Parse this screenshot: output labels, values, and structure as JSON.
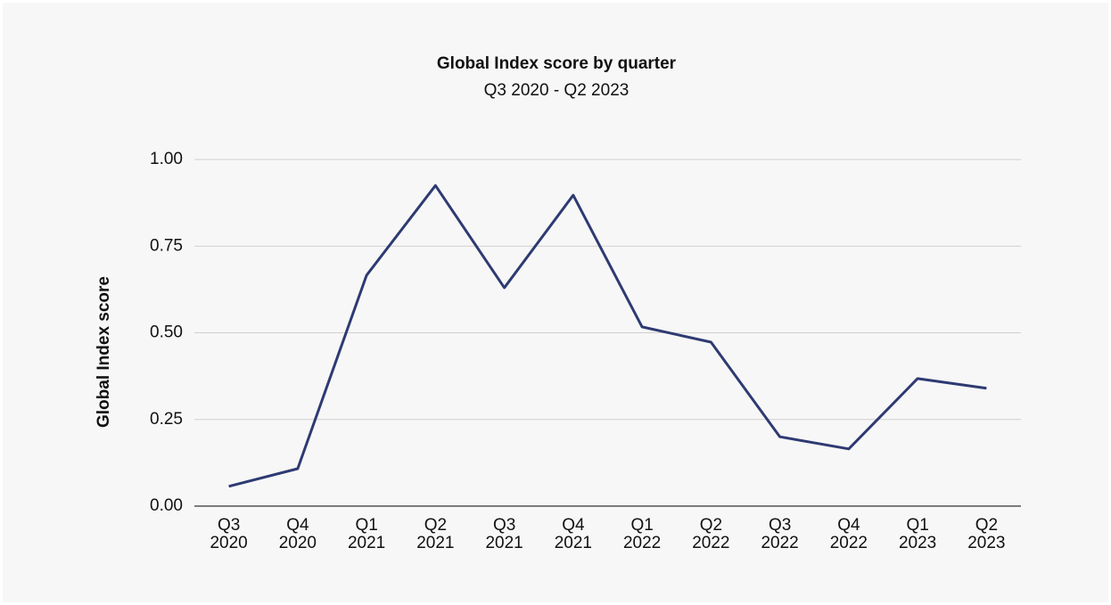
{
  "chart_data": {
    "type": "line",
    "title": "Global Index score by quarter",
    "subtitle": "Q3 2020 - Q2 2023",
    "y_label": "Global Index score",
    "categories": [
      "Q3 2020",
      "Q4 2020",
      "Q1 2021",
      "Q2 2021",
      "Q3 2021",
      "Q4 2021",
      "Q1 2022",
      "Q2 2022",
      "Q3 2022",
      "Q4 2022",
      "Q1 2023",
      "Q2 2023"
    ],
    "values": [
      0.057,
      0.108,
      0.666,
      0.925,
      0.63,
      0.897,
      0.517,
      0.473,
      0.2,
      0.165,
      0.368,
      0.34
    ],
    "color": "#2e3a72",
    "ylim": [
      0,
      1
    ],
    "yticks": [
      {
        "value": 0,
        "label": "0.00"
      },
      {
        "value": 0.25,
        "label": "0.25"
      },
      {
        "value": 0.5,
        "label": "0.50"
      },
      {
        "value": 0.75,
        "label": "0.75"
      },
      {
        "value": 1,
        "label": "1.00"
      }
    ],
    "grid": true
  }
}
